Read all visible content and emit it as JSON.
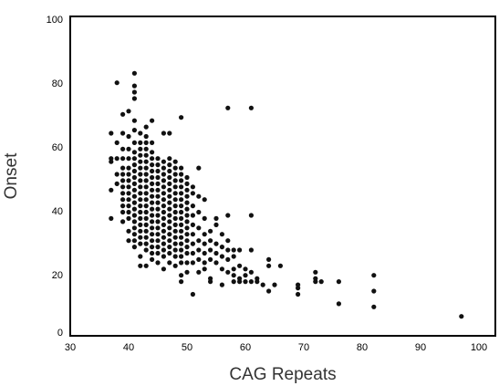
{
  "chart_data": {
    "type": "scatter",
    "title": "",
    "xlabel": "CAG Repeats",
    "ylabel": "Onset",
    "xlim": [
      30,
      103
    ],
    "ylim": [
      0,
      100
    ],
    "xticks": [
      30,
      40,
      50,
      60,
      70,
      80,
      90,
      100
    ],
    "yticks": [
      0,
      20,
      40,
      60,
      80,
      100
    ],
    "grid": false,
    "legend": "none",
    "point_color": "#111111",
    "series": [
      {
        "points": [
          [
            37,
            63
          ],
          [
            37,
            55
          ],
          [
            37,
            54
          ],
          [
            37,
            45
          ],
          [
            37,
            36
          ],
          [
            38,
            79
          ],
          [
            38,
            60
          ],
          [
            38,
            55
          ],
          [
            38,
            50
          ],
          [
            38,
            47
          ],
          [
            39,
            69
          ],
          [
            39,
            63
          ],
          [
            39,
            58
          ],
          [
            39,
            55
          ],
          [
            39,
            52
          ],
          [
            39,
            50
          ],
          [
            39,
            48
          ],
          [
            39,
            46
          ],
          [
            39,
            44
          ],
          [
            39,
            42
          ],
          [
            39,
            40
          ],
          [
            39,
            38
          ],
          [
            39,
            35
          ],
          [
            40,
            70
          ],
          [
            40,
            62
          ],
          [
            40,
            58
          ],
          [
            40,
            55
          ],
          [
            40,
            52
          ],
          [
            40,
            50
          ],
          [
            40,
            48
          ],
          [
            40,
            46
          ],
          [
            40,
            44
          ],
          [
            40,
            42
          ],
          [
            40,
            40
          ],
          [
            40,
            38
          ],
          [
            40,
            36
          ],
          [
            40,
            32
          ],
          [
            40,
            29
          ],
          [
            41,
            82
          ],
          [
            41,
            78
          ],
          [
            41,
            76
          ],
          [
            41,
            74
          ],
          [
            41,
            67
          ],
          [
            41,
            64
          ],
          [
            41,
            60
          ],
          [
            41,
            57
          ],
          [
            41,
            55
          ],
          [
            41,
            53
          ],
          [
            41,
            51
          ],
          [
            41,
            49
          ],
          [
            41,
            47
          ],
          [
            41,
            45
          ],
          [
            41,
            43
          ],
          [
            41,
            41
          ],
          [
            41,
            39
          ],
          [
            41,
            37
          ],
          [
            41,
            35
          ],
          [
            41,
            33
          ],
          [
            41,
            31
          ],
          [
            41,
            29
          ],
          [
            41,
            27
          ],
          [
            42,
            63
          ],
          [
            42,
            60
          ],
          [
            42,
            58
          ],
          [
            42,
            56
          ],
          [
            42,
            54
          ],
          [
            42,
            52
          ],
          [
            42,
            50
          ],
          [
            42,
            48
          ],
          [
            42,
            46
          ],
          [
            42,
            44
          ],
          [
            42,
            42
          ],
          [
            42,
            40
          ],
          [
            42,
            38
          ],
          [
            42,
            36
          ],
          [
            42,
            34
          ],
          [
            42,
            32
          ],
          [
            42,
            30
          ],
          [
            42,
            28
          ],
          [
            42,
            24
          ],
          [
            42,
            21
          ],
          [
            43,
            65
          ],
          [
            43,
            62
          ],
          [
            43,
            60
          ],
          [
            43,
            58
          ],
          [
            43,
            56
          ],
          [
            43,
            54
          ],
          [
            43,
            52
          ],
          [
            43,
            50
          ],
          [
            43,
            48
          ],
          [
            43,
            46
          ],
          [
            43,
            44
          ],
          [
            43,
            42
          ],
          [
            43,
            40
          ],
          [
            43,
            38
          ],
          [
            43,
            36
          ],
          [
            43,
            34
          ],
          [
            43,
            32
          ],
          [
            43,
            30
          ],
          [
            43,
            28
          ],
          [
            43,
            26
          ],
          [
            43,
            21
          ],
          [
            44,
            67
          ],
          [
            44,
            60
          ],
          [
            44,
            57
          ],
          [
            44,
            55
          ],
          [
            44,
            53
          ],
          [
            44,
            51
          ],
          [
            44,
            49
          ],
          [
            44,
            47
          ],
          [
            44,
            45
          ],
          [
            44,
            43
          ],
          [
            44,
            41
          ],
          [
            44,
            39
          ],
          [
            44,
            37
          ],
          [
            44,
            35
          ],
          [
            44,
            33
          ],
          [
            44,
            31
          ],
          [
            44,
            29
          ],
          [
            44,
            27
          ],
          [
            44,
            25
          ],
          [
            44,
            23
          ],
          [
            45,
            55
          ],
          [
            45,
            53
          ],
          [
            45,
            51
          ],
          [
            45,
            49
          ],
          [
            45,
            47
          ],
          [
            45,
            45
          ],
          [
            45,
            43
          ],
          [
            45,
            41
          ],
          [
            45,
            39
          ],
          [
            45,
            37
          ],
          [
            45,
            35
          ],
          [
            45,
            33
          ],
          [
            45,
            31
          ],
          [
            45,
            29
          ],
          [
            45,
            27
          ],
          [
            45,
            25
          ],
          [
            45,
            22
          ],
          [
            46,
            63
          ],
          [
            46,
            54
          ],
          [
            46,
            52
          ],
          [
            46,
            50
          ],
          [
            46,
            48
          ],
          [
            46,
            46
          ],
          [
            46,
            44
          ],
          [
            46,
            42
          ],
          [
            46,
            40
          ],
          [
            46,
            38
          ],
          [
            46,
            36
          ],
          [
            46,
            34
          ],
          [
            46,
            32
          ],
          [
            46,
            30
          ],
          [
            46,
            28
          ],
          [
            46,
            26
          ],
          [
            46,
            24
          ],
          [
            46,
            20
          ],
          [
            47,
            63
          ],
          [
            47,
            55
          ],
          [
            47,
            53
          ],
          [
            47,
            51
          ],
          [
            47,
            49
          ],
          [
            47,
            47
          ],
          [
            47,
            45
          ],
          [
            47,
            43
          ],
          [
            47,
            41
          ],
          [
            47,
            39
          ],
          [
            47,
            37
          ],
          [
            47,
            35
          ],
          [
            47,
            33
          ],
          [
            47,
            31
          ],
          [
            47,
            29
          ],
          [
            47,
            27
          ],
          [
            47,
            25
          ],
          [
            47,
            22
          ],
          [
            48,
            54
          ],
          [
            48,
            52
          ],
          [
            48,
            50
          ],
          [
            48,
            48
          ],
          [
            48,
            46
          ],
          [
            48,
            44
          ],
          [
            48,
            42
          ],
          [
            48,
            40
          ],
          [
            48,
            38
          ],
          [
            48,
            36
          ],
          [
            48,
            34
          ],
          [
            48,
            32
          ],
          [
            48,
            30
          ],
          [
            48,
            28
          ],
          [
            48,
            26
          ],
          [
            48,
            24
          ],
          [
            48,
            21
          ],
          [
            49,
            68
          ],
          [
            49,
            52
          ],
          [
            49,
            50
          ],
          [
            49,
            48
          ],
          [
            49,
            46
          ],
          [
            49,
            44
          ],
          [
            49,
            42
          ],
          [
            49,
            40
          ],
          [
            49,
            38
          ],
          [
            49,
            36
          ],
          [
            49,
            34
          ],
          [
            49,
            32
          ],
          [
            49,
            30
          ],
          [
            49,
            28
          ],
          [
            49,
            26
          ],
          [
            49,
            24
          ],
          [
            49,
            22
          ],
          [
            49,
            18
          ],
          [
            49,
            16
          ],
          [
            50,
            49
          ],
          [
            50,
            47
          ],
          [
            50,
            45
          ],
          [
            50,
            43
          ],
          [
            50,
            41
          ],
          [
            50,
            39
          ],
          [
            50,
            37
          ],
          [
            50,
            35
          ],
          [
            50,
            33
          ],
          [
            50,
            31
          ],
          [
            50,
            29
          ],
          [
            50,
            27
          ],
          [
            50,
            25
          ],
          [
            50,
            22
          ],
          [
            50,
            19
          ],
          [
            51,
            46
          ],
          [
            51,
            44
          ],
          [
            51,
            40
          ],
          [
            51,
            37
          ],
          [
            51,
            34
          ],
          [
            51,
            31
          ],
          [
            51,
            28
          ],
          [
            51,
            25
          ],
          [
            51,
            22
          ],
          [
            51,
            12
          ],
          [
            52,
            52
          ],
          [
            52,
            43
          ],
          [
            52,
            38
          ],
          [
            52,
            33
          ],
          [
            52,
            29
          ],
          [
            52,
            26
          ],
          [
            52,
            23
          ],
          [
            52,
            19
          ],
          [
            53,
            42
          ],
          [
            53,
            36
          ],
          [
            53,
            31
          ],
          [
            53,
            28
          ],
          [
            53,
            25
          ],
          [
            53,
            22
          ],
          [
            53,
            20
          ],
          [
            54,
            32
          ],
          [
            54,
            29
          ],
          [
            54,
            26
          ],
          [
            54,
            23
          ],
          [
            54,
            17
          ],
          [
            54,
            16
          ],
          [
            55,
            36
          ],
          [
            55,
            34
          ],
          [
            55,
            28
          ],
          [
            55,
            25
          ],
          [
            55,
            22
          ],
          [
            56,
            31
          ],
          [
            56,
            27
          ],
          [
            56,
            24
          ],
          [
            56,
            20
          ],
          [
            56,
            15
          ],
          [
            57,
            71
          ],
          [
            57,
            37
          ],
          [
            57,
            29
          ],
          [
            57,
            26
          ],
          [
            57,
            23
          ],
          [
            57,
            19
          ],
          [
            58,
            26
          ],
          [
            58,
            24
          ],
          [
            58,
            20
          ],
          [
            58,
            18
          ],
          [
            58,
            16
          ],
          [
            59,
            26
          ],
          [
            59,
            21
          ],
          [
            59,
            17
          ],
          [
            59,
            16
          ],
          [
            60,
            20
          ],
          [
            60,
            18
          ],
          [
            60,
            16
          ],
          [
            61,
            71
          ],
          [
            61,
            37
          ],
          [
            61,
            26
          ],
          [
            61,
            19
          ],
          [
            61,
            16
          ],
          [
            62,
            17
          ],
          [
            62,
            16
          ],
          [
            63,
            15
          ],
          [
            64,
            23
          ],
          [
            64,
            21
          ],
          [
            64,
            13
          ],
          [
            65,
            15
          ],
          [
            66,
            21
          ],
          [
            69,
            15
          ],
          [
            69,
            14
          ],
          [
            69,
            12
          ],
          [
            72,
            19
          ],
          [
            72,
            17
          ],
          [
            72,
            16
          ],
          [
            73,
            16
          ],
          [
            76,
            16
          ],
          [
            76,
            9
          ],
          [
            82,
            18
          ],
          [
            82,
            13
          ],
          [
            82,
            8
          ],
          [
            97,
            5
          ]
        ]
      }
    ]
  }
}
